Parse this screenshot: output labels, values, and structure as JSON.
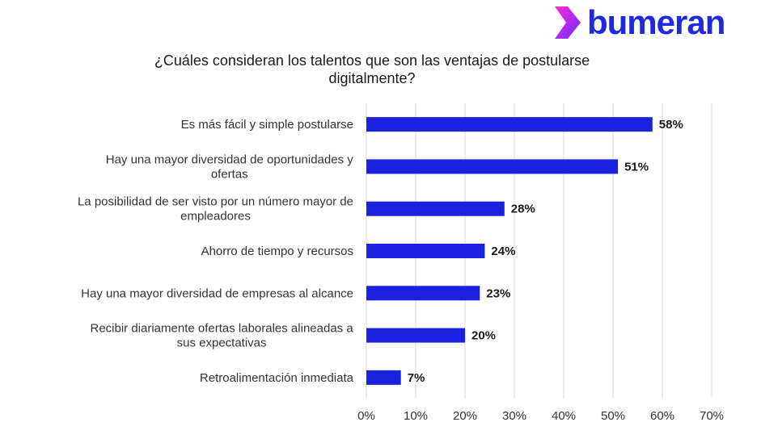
{
  "brand": {
    "name": "bumeran",
    "logo_color": "#1f2ae0",
    "logo_accent_colors": [
      "#ff2bd6",
      "#6a2bff"
    ]
  },
  "chart_data": {
    "type": "bar",
    "orientation": "horizontal",
    "title_lines": [
      "¿Cuáles consideran los talentos que son las ventajas de postularse",
      "digitalmente?"
    ],
    "categories": [
      [
        "Es más fácil y simple postularse"
      ],
      [
        "Hay una mayor diversidad de oportunidades y",
        "ofertas"
      ],
      [
        "La posibilidad de ser visto por un número mayor de",
        "empleadores"
      ],
      [
        "Ahorro de tiempo y recursos"
      ],
      [
        "Hay una mayor diversidad de empresas al alcance"
      ],
      [
        "Recibir diariamente ofertas laborales alineadas a",
        "sus expectativas"
      ],
      [
        "Retroalimentación inmediata"
      ]
    ],
    "values": [
      58,
      51,
      28,
      24,
      23,
      20,
      7
    ],
    "value_labels": [
      "58%",
      "51%",
      "28%",
      "24%",
      "23%",
      "20%",
      "7%"
    ],
    "xlim": [
      0,
      70
    ],
    "x_ticks": [
      0,
      10,
      20,
      30,
      40,
      50,
      60,
      70
    ],
    "x_tick_labels": [
      "0%",
      "10%",
      "20%",
      "30%",
      "40%",
      "50%",
      "60%",
      "70%"
    ],
    "grid": true,
    "bar_color": "#1a22e0"
  }
}
